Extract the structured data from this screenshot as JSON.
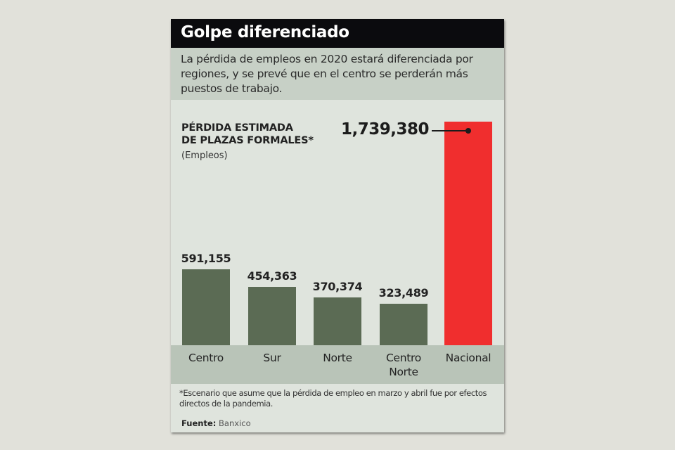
{
  "title": "Golpe diferenciado",
  "subtitle": "La pérdida de empleos en 2020 estará diferenciada por regiones, y se prevé que en el centro se perderán más puestos de trabajo.",
  "chart_data": {
    "type": "bar",
    "title": "PÉRDIDA ESTIMADA DE PLAZAS FORMALES*",
    "title_lines": [
      "PÉRDIDA ESTIMADA",
      "DE PLAZAS FORMALES*"
    ],
    "ylabel": "(Empleos)",
    "categories": [
      "Centro",
      "Sur",
      "Norte",
      "Centro Norte",
      "Nacional"
    ],
    "category_lines": [
      [
        "Centro"
      ],
      [
        "Sur"
      ],
      [
        "Norte"
      ],
      [
        "Centro",
        "Norte"
      ],
      [
        "Nacional"
      ]
    ],
    "values": [
      591155,
      454363,
      370374,
      323489,
      1739380
    ],
    "value_labels": [
      "591,155",
      "454,363",
      "370,374",
      "323,489",
      "1,739,380"
    ],
    "colors": [
      "#5b6b54",
      "#5b6b54",
      "#5b6b54",
      "#5b6b54",
      "#f02e2e"
    ],
    "ylim": [
      0,
      1739380
    ],
    "grid": false
  },
  "footnote": "*Escenario que asume que la pérdida de empleo en marzo y abril fue por efectos directos de la pandemia.",
  "source_label": "Fuente:",
  "source": "Banxico"
}
